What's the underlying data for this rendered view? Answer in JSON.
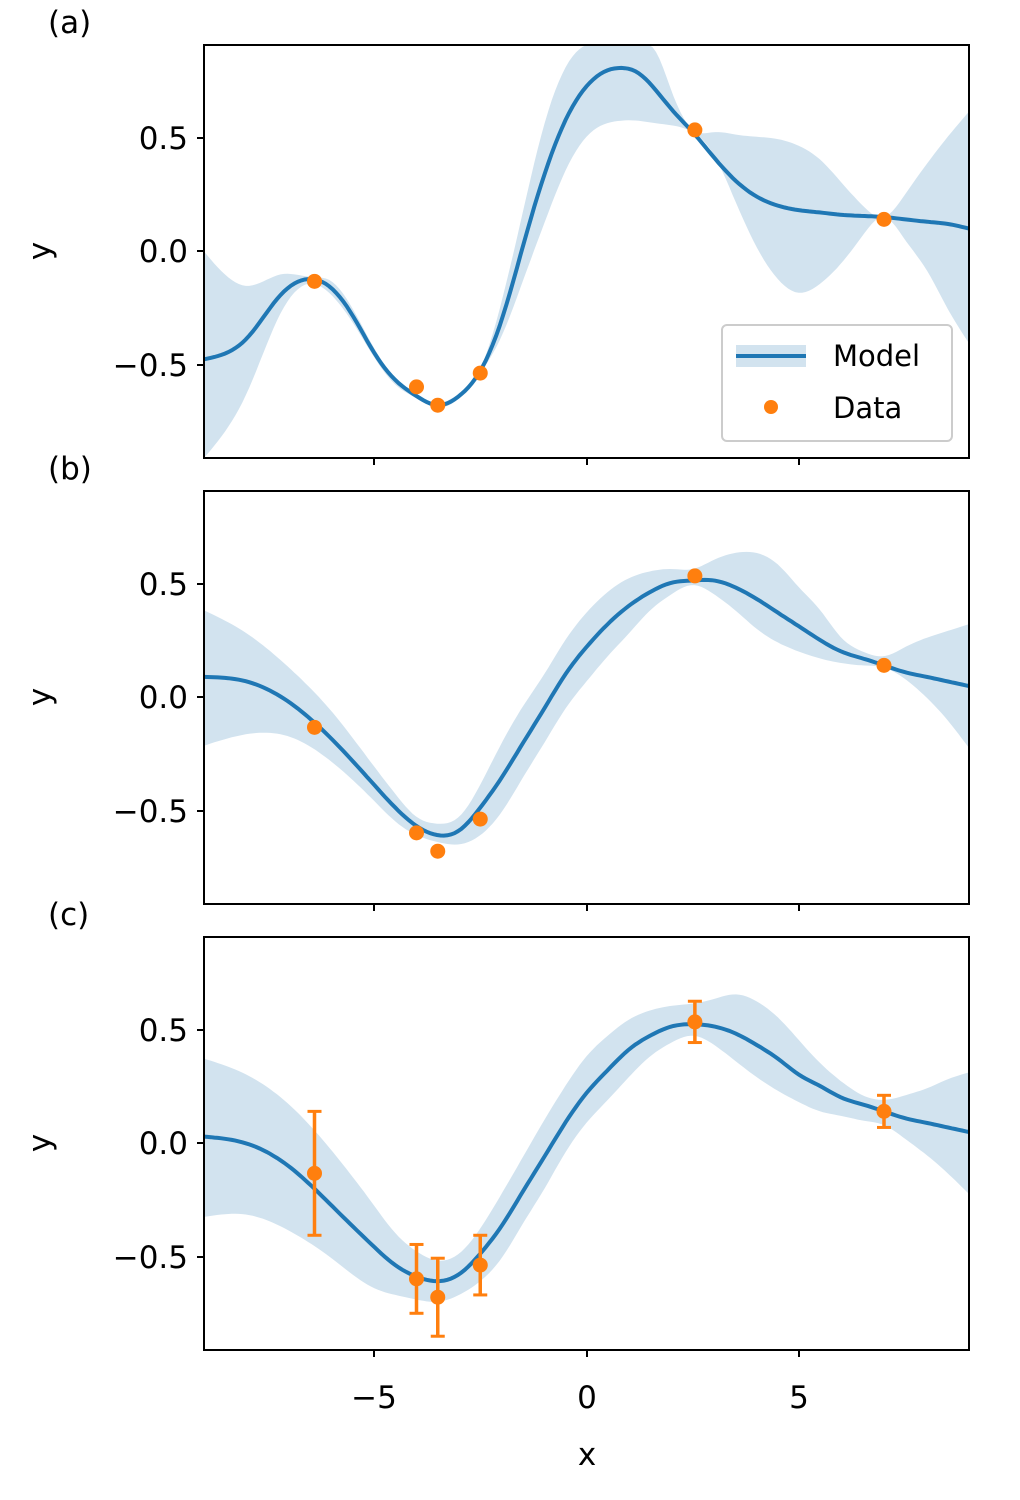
{
  "figure": {
    "xlabel": "x",
    "xlim": [
      -9,
      9
    ],
    "xticks": [
      -5,
      0,
      5
    ],
    "xtick_labels": [
      "−5",
      "0",
      "5"
    ],
    "ylim": [
      -0.9,
      0.9
    ],
    "yticks": [
      0.5,
      0.0,
      -0.5
    ],
    "ytick_labels": [
      "0.5",
      "0.0",
      "−0.5"
    ],
    "colors": {
      "model": "#1f77b4",
      "band": "#d2e3ef",
      "data": "#ff7f0e"
    }
  },
  "legend": {
    "model_label": "Model",
    "data_label": "Data"
  },
  "chart_data": [
    {
      "type": "line",
      "panel_label": "(a)",
      "xlabel": "",
      "ylabel": "y",
      "legend_placement": "lower-right",
      "model": {
        "x": [
          -9,
          -8,
          -7.2,
          -6.5,
          -6,
          -5.5,
          -5,
          -4.5,
          -4,
          -3.5,
          -3,
          -2.5,
          -2,
          -1.5,
          -1,
          -0.5,
          0,
          0.5,
          0.8,
          1.2,
          1.6,
          2,
          2.5,
          3,
          3.5,
          4,
          4.5,
          5,
          5.5,
          6,
          6.5,
          7,
          7.5,
          8,
          8.5,
          9
        ],
        "mean": [
          -0.47,
          -0.38,
          -0.19,
          -0.12,
          -0.16,
          -0.28,
          -0.44,
          -0.56,
          -0.63,
          -0.67,
          -0.63,
          -0.52,
          -0.3,
          0.02,
          0.33,
          0.57,
          0.72,
          0.79,
          0.8,
          0.78,
          0.71,
          0.62,
          0.52,
          0.41,
          0.31,
          0.24,
          0.2,
          0.18,
          0.17,
          0.16,
          0.155,
          0.15,
          0.14,
          0.13,
          0.12,
          0.1
        ],
        "lower": [
          -0.9,
          -0.62,
          -0.27,
          -0.14,
          -0.19,
          -0.31,
          -0.46,
          -0.58,
          -0.64,
          -0.68,
          -0.64,
          -0.53,
          -0.37,
          -0.13,
          0.12,
          0.35,
          0.5,
          0.56,
          0.57,
          0.57,
          0.56,
          0.55,
          0.52,
          0.42,
          0.22,
          0.02,
          -0.12,
          -0.18,
          -0.14,
          -0.05,
          0.07,
          0.15,
          0.05,
          -0.08,
          -0.25,
          -0.4
        ],
        "upper": [
          0.0,
          -0.15,
          -0.1,
          -0.11,
          -0.13,
          -0.25,
          -0.42,
          -0.55,
          -0.62,
          -0.66,
          -0.62,
          -0.51,
          -0.22,
          0.17,
          0.55,
          0.8,
          0.9,
          0.9,
          0.9,
          0.9,
          0.88,
          0.7,
          0.53,
          0.52,
          0.51,
          0.5,
          0.49,
          0.46,
          0.4,
          0.3,
          0.2,
          0.15,
          0.25,
          0.38,
          0.5,
          0.61
        ]
      },
      "points": {
        "x": [
          -6.4,
          -4.0,
          -3.5,
          -2.5,
          2.55,
          7.0
        ],
        "y": [
          -0.13,
          -0.59,
          -0.67,
          -0.53,
          0.53,
          0.14
        ]
      }
    },
    {
      "type": "line",
      "panel_label": "(b)",
      "xlabel": "",
      "ylabel": "y",
      "model": {
        "x": [
          -9,
          -8,
          -7,
          -6,
          -5,
          -4.5,
          -4,
          -3.5,
          -3,
          -2.5,
          -2,
          -1.5,
          -1,
          -0.5,
          0,
          0.5,
          1,
          1.5,
          2,
          2.5,
          3,
          3.5,
          4,
          4.5,
          5,
          5.5,
          6,
          6.5,
          7,
          7.5,
          8,
          8.5,
          9
        ],
        "mean": [
          0.09,
          0.07,
          -0.02,
          -0.18,
          -0.38,
          -0.48,
          -0.56,
          -0.6,
          -0.58,
          -0.48,
          -0.35,
          -0.2,
          -0.05,
          0.1,
          0.22,
          0.32,
          0.4,
          0.46,
          0.5,
          0.51,
          0.51,
          0.48,
          0.43,
          0.37,
          0.31,
          0.25,
          0.2,
          0.17,
          0.14,
          0.11,
          0.09,
          0.07,
          0.05
        ],
        "lower": [
          -0.21,
          -0.16,
          -0.17,
          -0.28,
          -0.45,
          -0.54,
          -0.6,
          -0.63,
          -0.64,
          -0.6,
          -0.5,
          -0.35,
          -0.2,
          -0.05,
          0.07,
          0.18,
          0.28,
          0.38,
          0.45,
          0.49,
          0.45,
          0.38,
          0.3,
          0.24,
          0.2,
          0.17,
          0.15,
          0.14,
          0.13,
          0.08,
          0.0,
          -0.1,
          -0.22
        ],
        "upper": [
          0.38,
          0.28,
          0.13,
          -0.06,
          -0.3,
          -0.42,
          -0.52,
          -0.55,
          -0.52,
          -0.38,
          -0.2,
          -0.04,
          0.1,
          0.25,
          0.37,
          0.46,
          0.52,
          0.55,
          0.56,
          0.56,
          0.6,
          0.63,
          0.63,
          0.58,
          0.48,
          0.38,
          0.26,
          0.2,
          0.18,
          0.22,
          0.26,
          0.29,
          0.32
        ]
      },
      "points": {
        "x": [
          -6.4,
          -4.0,
          -3.5,
          -2.5,
          2.55,
          7.0
        ],
        "y": [
          -0.13,
          -0.59,
          -0.67,
          -0.53,
          0.53,
          0.14
        ]
      }
    },
    {
      "type": "line",
      "panel_label": "(c)",
      "xlabel": "x",
      "ylabel": "y",
      "model": {
        "x": [
          -9,
          -8,
          -7,
          -6,
          -5,
          -4.5,
          -4,
          -3.5,
          -3,
          -2.5,
          -2,
          -1.5,
          -1,
          -0.5,
          0,
          0.5,
          1,
          1.5,
          2,
          2.5,
          3,
          3.5,
          4,
          4.5,
          5,
          5.5,
          6,
          6.5,
          7,
          7.5,
          8,
          8.5,
          9
        ],
        "mean": [
          0.03,
          0.0,
          -0.1,
          -0.27,
          -0.45,
          -0.53,
          -0.58,
          -0.6,
          -0.57,
          -0.48,
          -0.36,
          -0.21,
          -0.06,
          0.09,
          0.22,
          0.32,
          0.41,
          0.47,
          0.51,
          0.52,
          0.51,
          0.48,
          0.43,
          0.37,
          0.3,
          0.25,
          0.2,
          0.17,
          0.14,
          0.11,
          0.09,
          0.07,
          0.05
        ],
        "lower": [
          -0.32,
          -0.31,
          -0.38,
          -0.5,
          -0.63,
          -0.66,
          -0.68,
          -0.69,
          -0.66,
          -0.6,
          -0.5,
          -0.35,
          -0.2,
          -0.04,
          0.09,
          0.19,
          0.29,
          0.38,
          0.44,
          0.47,
          0.43,
          0.36,
          0.29,
          0.23,
          0.18,
          0.14,
          0.12,
          0.1,
          0.08,
          0.02,
          -0.05,
          -0.13,
          -0.22
        ],
        "upper": [
          0.37,
          0.3,
          0.17,
          -0.03,
          -0.27,
          -0.39,
          -0.47,
          -0.51,
          -0.48,
          -0.37,
          -0.22,
          -0.06,
          0.1,
          0.25,
          0.38,
          0.47,
          0.54,
          0.58,
          0.6,
          0.61,
          0.63,
          0.65,
          0.62,
          0.55,
          0.45,
          0.35,
          0.27,
          0.21,
          0.19,
          0.21,
          0.24,
          0.28,
          0.31
        ]
      },
      "points": {
        "x": [
          -6.4,
          -4.0,
          -3.5,
          -2.5,
          2.55,
          7.0
        ],
        "y": [
          -0.13,
          -0.59,
          -0.67,
          -0.53,
          0.53,
          0.14
        ],
        "yerr": [
          0.27,
          0.15,
          0.17,
          0.13,
          0.09,
          0.07
        ]
      }
    }
  ]
}
